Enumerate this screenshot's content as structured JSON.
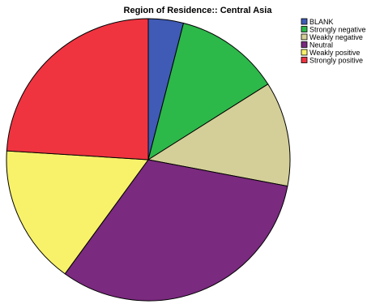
{
  "chart_data": {
    "type": "pie",
    "title": "Region of Residence:: Central Asia",
    "start_angle_deg": 0,
    "direction": "clockwise",
    "legend_position": "top-right",
    "slices": [
      {
        "label": "BLANK",
        "value": 4,
        "color": "#3f5bb5"
      },
      {
        "label": "Strongly negative",
        "value": 12,
        "color": "#2db84a"
      },
      {
        "label": "Weakly negative",
        "value": 12,
        "color": "#d4cf98"
      },
      {
        "label": "Neutral",
        "value": 32,
        "color": "#7a2a7f"
      },
      {
        "label": "Weakly positive",
        "value": 16,
        "color": "#f8f26a"
      },
      {
        "label": "Strongly positive",
        "value": 24,
        "color": "#ef3440"
      }
    ]
  }
}
